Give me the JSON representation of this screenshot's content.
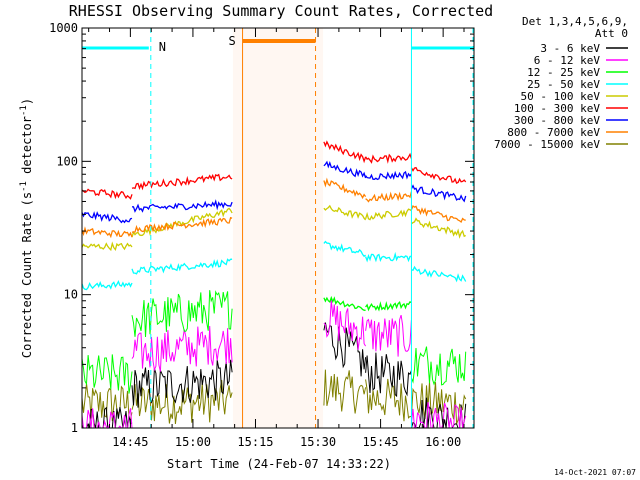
{
  "chart_data": {
    "type": "line",
    "title": "RHESSI Observing Summary Count Rates, Corrected",
    "xlabel": "Start Time (24-Feb-07 14:33:22)",
    "ylabel_main": "Corrected Count Rate (s",
    "ylabel_sup1": "-1",
    "ylabel_mid": " detector",
    "ylabel_sup2": "-1",
    "ylabel_end": ")",
    "y_scale": "log",
    "ylim": [
      1,
      1000
    ],
    "xlim_minutes": [
      0,
      94
    ],
    "x_ticks": [
      {
        "label": "14:45",
        "t": 11.6
      },
      {
        "label": "15:00",
        "t": 26.6
      },
      {
        "label": "15:15",
        "t": 41.6
      },
      {
        "label": "15:30",
        "t": 56.6
      },
      {
        "label": "15:45",
        "t": 71.6
      },
      {
        "label": "16:00",
        "t": 86.6
      }
    ],
    "y_ticks": [
      {
        "label": "1",
        "v": 1
      },
      {
        "label": "10",
        "v": 10
      },
      {
        "label": "100",
        "v": 100
      },
      {
        "label": "1000",
        "v": 1000
      }
    ],
    "legend": {
      "header1": "Det 1,3,4,5,6,9,",
      "header2": "Att 0",
      "placement": "top-right"
    },
    "timestamp": "14-Oct-2021 07:07",
    "annotations": [
      {
        "label": "N",
        "color": "#00ffff"
      },
      {
        "label": "S",
        "color": "#ff8000"
      }
    ],
    "night_intervals": [
      [
        0,
        16.5
      ],
      [
        79,
        94
      ]
    ],
    "saa_interval": [
      38.5,
      56
    ],
    "data_gap": [
      36.2,
      57.8
    ],
    "series": [
      {
        "name": "3 - 6 keV",
        "color": "#000000",
        "segments": [
          {
            "t": [
              0,
              12
            ],
            "v": [
              1.0,
              1.0
            ]
          },
          {
            "t": [
              12,
              36
            ],
            "v": [
              2.0,
              2.3
            ]
          },
          {
            "t": [
              58,
              68
            ],
            "v": [
              5.5,
              3.0
            ]
          },
          {
            "t": [
              68,
              79
            ],
            "v": [
              2.6,
              2.4
            ]
          },
          {
            "t": [
              79,
              92
            ],
            "v": [
              1.3,
              1.1
            ]
          }
        ]
      },
      {
        "name": "6 - 12 keV",
        "color": "#ff00ff",
        "segments": [
          {
            "t": [
              0,
              12
            ],
            "v": [
              1.0,
              1.0
            ]
          },
          {
            "t": [
              12,
              36
            ],
            "v": [
              3.6,
              4.4
            ]
          },
          {
            "t": [
              58,
              68
            ],
            "v": [
              6.8,
              5.2
            ]
          },
          {
            "t": [
              68,
              79
            ],
            "v": [
              5.1,
              4.8
            ]
          },
          {
            "t": [
              79,
              92
            ],
            "v": [
              1.2,
              1.0
            ]
          }
        ]
      },
      {
        "name": "12 - 25 keV",
        "color": "#00ff00",
        "segments": [
          {
            "t": [
              0,
              12
            ],
            "v": [
              2.5,
              2.5
            ]
          },
          {
            "t": [
              12,
              36
            ],
            "v": [
              6.5,
              8.0
            ]
          },
          {
            "t": [
              58,
              68
            ],
            "v": [
              9.5,
              7.8
            ]
          },
          {
            "t": [
              68,
              79
            ],
            "v": [
              8.0,
              8.5
            ]
          },
          {
            "t": [
              79,
              92
            ],
            "v": [
              3.1,
              3.0
            ]
          }
        ]
      },
      {
        "name": "25 - 50 keV",
        "color": "#00ffff",
        "segments": [
          {
            "t": [
              0,
              12
            ],
            "v": [
              11.5,
              12.0
            ]
          },
          {
            "t": [
              12,
              36
            ],
            "v": [
              15.0,
              17.5
            ]
          },
          {
            "t": [
              58,
              68
            ],
            "v": [
              24.0,
              20.0
            ]
          },
          {
            "t": [
              68,
              79
            ],
            "v": [
              19.0,
              19.0
            ]
          },
          {
            "t": [
              79,
              92
            ],
            "v": [
              15.5,
              13.0
            ]
          }
        ]
      },
      {
        "name": "50 - 100 keV",
        "color": "#cccc00",
        "segments": [
          {
            "t": [
              0,
              12
            ],
            "v": [
              23.0,
              23.0
            ]
          },
          {
            "t": [
              12,
              36
            ],
            "v": [
              28.0,
              43.0
            ]
          },
          {
            "t": [
              58,
              68
            ],
            "v": [
              45.0,
              38.0
            ]
          },
          {
            "t": [
              68,
              79
            ],
            "v": [
              38.0,
              42.0
            ]
          },
          {
            "t": [
              79,
              92
            ],
            "v": [
              36.0,
              28.0
            ]
          }
        ]
      },
      {
        "name": "100 - 300 keV",
        "color": "#ff0000",
        "segments": [
          {
            "t": [
              0,
              12
            ],
            "v": [
              60.0,
              55.0
            ]
          },
          {
            "t": [
              12,
              36
            ],
            "v": [
              65.0,
              77.0
            ]
          },
          {
            "t": [
              58,
              68
            ],
            "v": [
              135.0,
              105.0
            ]
          },
          {
            "t": [
              68,
              79
            ],
            "v": [
              103.0,
              108.0
            ]
          },
          {
            "t": [
              79,
              92
            ],
            "v": [
              88.0,
              68.0
            ]
          }
        ]
      },
      {
        "name": "300 - 800 keV",
        "color": "#0000ff",
        "segments": [
          {
            "t": [
              0,
              12
            ],
            "v": [
              40.0,
              36.0
            ]
          },
          {
            "t": [
              12,
              36
            ],
            "v": [
              44.0,
              48.0
            ]
          },
          {
            "t": [
              58,
              68
            ],
            "v": [
              95.0,
              78.0
            ]
          },
          {
            "t": [
              68,
              79
            ],
            "v": [
              76.0,
              80.0
            ]
          },
          {
            "t": [
              79,
              92
            ],
            "v": [
              63.0,
              52.0
            ]
          }
        ]
      },
      {
        "name": "800 - 7000 keV",
        "color": "#ff8000",
        "segments": [
          {
            "t": [
              0,
              12
            ],
            "v": [
              30.0,
              28.0
            ]
          },
          {
            "t": [
              12,
              36
            ],
            "v": [
              31.0,
              36.0
            ]
          },
          {
            "t": [
              58,
              68
            ],
            "v": [
              70.0,
              55.0
            ]
          },
          {
            "t": [
              68,
              79
            ],
            "v": [
              52.0,
              56.0
            ]
          },
          {
            "t": [
              79,
              92
            ],
            "v": [
              45.0,
              35.0
            ]
          }
        ]
      },
      {
        "name": "7000 - 15000 keV",
        "color": "#808000",
        "segments": [
          {
            "t": [
              0,
              12
            ],
            "v": [
              1.5,
              1.5
            ]
          },
          {
            "t": [
              12,
              36
            ],
            "v": [
              1.5,
              1.6
            ]
          },
          {
            "t": [
              58,
              68
            ],
            "v": [
              2.0,
              1.8
            ]
          },
          {
            "t": [
              68,
              79
            ],
            "v": [
              1.7,
              1.6
            ]
          },
          {
            "t": [
              79,
              92
            ],
            "v": [
              1.6,
              1.5
            ]
          }
        ]
      }
    ]
  }
}
